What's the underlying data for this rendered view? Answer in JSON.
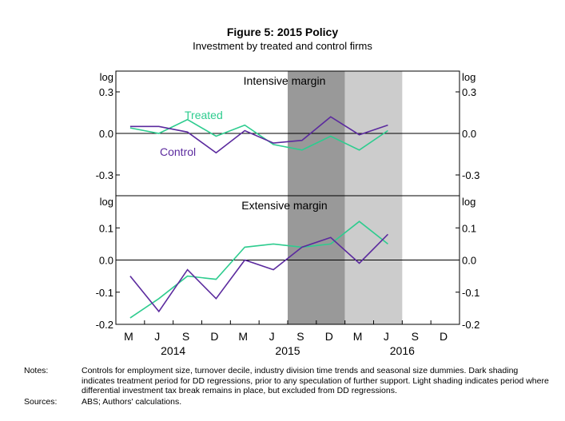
{
  "figure": {
    "title": "Figure 5: 2015 Policy",
    "subtitle": "Investment by treated and control firms"
  },
  "notes": {
    "notes_label": "Notes:",
    "notes_text": "Controls for employment size, turnover decile, industry division time trends and seasonal size dummies. Dark shading indicates treatment period for DD regressions, prior to any speculation of further support. Light shading indicates period where differential investment tax break remains in place, but excluded from DD regressions.",
    "sources_label": "Sources:",
    "sources_text": "ABS; Authors' calculations."
  },
  "chart_data": [
    {
      "type": "line",
      "title": "Intensive margin",
      "y_unit_label": "log",
      "ylim": [
        -0.45,
        0.45
      ],
      "yticks": [
        "0.3",
        "0.0",
        "-0.3"
      ],
      "ytick_values": [
        0.3,
        0.0,
        -0.3
      ],
      "x_index_range": [
        0,
        11
      ],
      "shading": [
        {
          "from": 5.5,
          "to": 7.5,
          "color": "#999999",
          "meaning": "dark"
        },
        {
          "from": 7.5,
          "to": 9.5,
          "color": "#cccccc",
          "meaning": "light"
        }
      ],
      "series": [
        {
          "name": "Treated",
          "color": "#2ecc8f",
          "x": [
            0,
            1,
            2,
            3,
            4,
            5,
            6,
            7,
            8,
            9
          ],
          "values": [
            0.04,
            0.0,
            0.1,
            -0.02,
            0.06,
            -0.08,
            -0.12,
            -0.02,
            -0.12,
            0.02
          ]
        },
        {
          "name": "Control",
          "color": "#5b2a9e",
          "x": [
            0,
            1,
            2,
            3,
            4,
            5,
            6,
            7,
            8,
            9
          ],
          "values": [
            0.05,
            0.05,
            0.01,
            -0.14,
            0.02,
            -0.07,
            -0.05,
            0.12,
            -0.01,
            0.06
          ]
        }
      ],
      "annotations": [
        {
          "text": "Treated",
          "series": "Treated"
        },
        {
          "text": "Control",
          "series": "Control"
        }
      ]
    },
    {
      "type": "line",
      "title": "Extensive margin",
      "y_unit_label": "log",
      "ylim": [
        -0.2,
        0.2
      ],
      "yticks": [
        "0.1",
        "0.0",
        "-0.1",
        "-0.2"
      ],
      "ytick_values": [
        0.1,
        0.0,
        -0.1,
        -0.2
      ],
      "x_index_range": [
        0,
        11
      ],
      "shading": [
        {
          "from": 5.5,
          "to": 7.5,
          "color": "#999999",
          "meaning": "dark"
        },
        {
          "from": 7.5,
          "to": 9.5,
          "color": "#cccccc",
          "meaning": "light"
        }
      ],
      "series": [
        {
          "name": "Treated",
          "color": "#2ecc8f",
          "x": [
            0,
            1,
            2,
            3,
            4,
            5,
            6,
            7,
            8,
            9
          ],
          "values": [
            -0.18,
            -0.12,
            -0.05,
            -0.06,
            0.04,
            0.05,
            0.04,
            0.05,
            0.12,
            0.05
          ]
        },
        {
          "name": "Control",
          "color": "#5b2a9e",
          "x": [
            0,
            1,
            2,
            3,
            4,
            5,
            6,
            7,
            8,
            9
          ],
          "values": [
            -0.05,
            -0.16,
            -0.03,
            -0.12,
            0.0,
            -0.03,
            0.04,
            0.07,
            -0.01,
            0.08
          ]
        }
      ]
    }
  ],
  "x_axis": {
    "month_labels": [
      "M",
      "J",
      "S",
      "D",
      "M",
      "J",
      "S",
      "D",
      "M",
      "J",
      "S",
      "D"
    ],
    "years": [
      {
        "label": "2014",
        "from": 0,
        "to": 3
      },
      {
        "label": "2015",
        "from": 4,
        "to": 7
      },
      {
        "label": "2016",
        "from": 8,
        "to": 11
      }
    ]
  }
}
